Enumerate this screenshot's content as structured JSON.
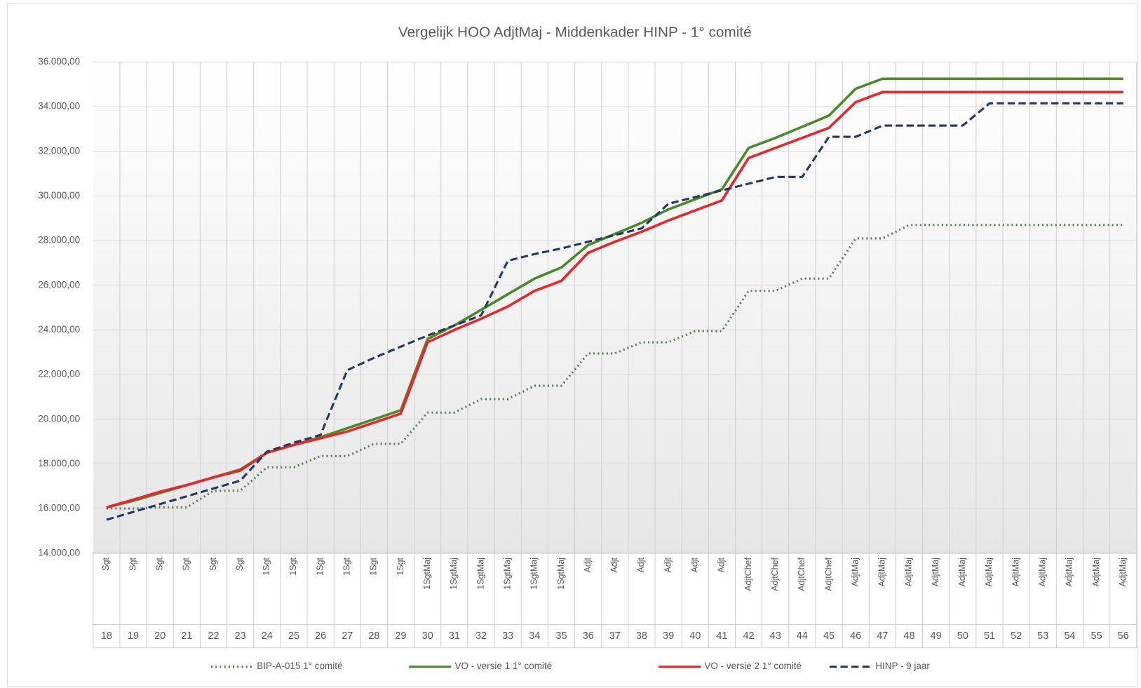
{
  "chart_data": {
    "type": "line",
    "title": "Vergelijk HOO AdjtMaj - Middenkader HINP - 1° comité",
    "categories": [
      "18",
      "19",
      "20",
      "21",
      "22",
      "23",
      "24",
      "25",
      "26",
      "27",
      "28",
      "29",
      "30",
      "31",
      "32",
      "33",
      "34",
      "35",
      "36",
      "37",
      "38",
      "39",
      "40",
      "41",
      "42",
      "43",
      "44",
      "45",
      "46",
      "47",
      "48",
      "49",
      "50",
      "51",
      "52",
      "53",
      "54",
      "55",
      "56"
    ],
    "grades": [
      "Sgt",
      "Sgt",
      "Sgt",
      "Sgt",
      "Sgt",
      "Sgt",
      "1Sgt",
      "1Sgt",
      "1Sgt",
      "1Sgt",
      "1Sgt",
      "1Sgt",
      "1SgtMaj",
      "1SgtMaj",
      "1SgtMaj",
      "1SgtMaj",
      "1SgtMaj",
      "1SgtMaj",
      "Adjt",
      "Adjt",
      "Adjt",
      "Adjt",
      "Adjt",
      "Adjt",
      "AdjtChef",
      "AdjtChef",
      "AdjtChef",
      "AdjtChef",
      "AdjtMaj",
      "AdjtMaj",
      "AdjtMaj",
      "AdjtMaj",
      "AdjtMaj",
      "AdjtMaj",
      "AdjtMaj",
      "AdjtMaj",
      "AdjtMaj",
      "AdjtMaj",
      "AdjtMaj"
    ],
    "series": [
      {
        "name": "BIP-A-015 1° comité",
        "color": "#5b7a5b",
        "dash": "dotted",
        "values": [
          16000,
          16000,
          16050,
          16050,
          16800,
          16800,
          17850,
          17850,
          18350,
          18350,
          18900,
          18900,
          20300,
          20300,
          20900,
          20900,
          21500,
          21500,
          22950,
          22950,
          23450,
          23450,
          23950,
          23950,
          25750,
          25750,
          26300,
          26300,
          28100,
          28100,
          28700,
          28700,
          28700,
          28700,
          28700,
          28700,
          28700,
          28700,
          28700
        ]
      },
      {
        "name": "VO - versie 1 1° comité",
        "color": "#4a8a2a",
        "dash": "solid",
        "values": [
          16050,
          16350,
          16700,
          17050,
          17400,
          17750,
          18500,
          18850,
          19200,
          19600,
          20000,
          20400,
          23600,
          24200,
          24900,
          25600,
          26300,
          26800,
          27800,
          28300,
          28800,
          29400,
          29850,
          30300,
          32150,
          32600,
          33100,
          33600,
          34800,
          35250,
          35250,
          35250,
          35250,
          35250,
          35250,
          35250,
          35250,
          35250,
          35250
        ]
      },
      {
        "name": "VO - versie 2 1° comité",
        "color": "#e8262a",
        "dash": "solid",
        "values": [
          16050,
          16400,
          16750,
          17050,
          17400,
          17700,
          18500,
          18850,
          19150,
          19450,
          19850,
          20250,
          23450,
          24000,
          24500,
          25050,
          25750,
          26200,
          27450,
          27950,
          28400,
          28900,
          29350,
          29800,
          31700,
          32150,
          32600,
          33050,
          34200,
          34650,
          34650,
          34650,
          34650,
          34650,
          34650,
          34650,
          34650,
          34650,
          34650
        ]
      },
      {
        "name": "HINP - 9 jaar",
        "color": "#233a5e",
        "dash": "dashed",
        "values": [
          15500,
          15850,
          16200,
          16550,
          16900,
          17250,
          18550,
          18950,
          19300,
          22200,
          22750,
          23250,
          23750,
          24200,
          24650,
          27100,
          27400,
          27650,
          27950,
          28250,
          28550,
          29650,
          29950,
          30250,
          30550,
          30850,
          30850,
          32650,
          32650,
          33150,
          33150,
          33150,
          33150,
          34150,
          34150,
          34150,
          34150,
          34150,
          34150
        ]
      }
    ],
    "ylim": [
      14000,
      36000
    ],
    "yticks": [
      {
        "value": 14000,
        "label": "14.000,00"
      },
      {
        "value": 16000,
        "label": "16.000,00"
      },
      {
        "value": 18000,
        "label": "18.000,00"
      },
      {
        "value": 20000,
        "label": "20.000,00"
      },
      {
        "value": 22000,
        "label": "22.000,00"
      },
      {
        "value": 24000,
        "label": "24.000,00"
      },
      {
        "value": 26000,
        "label": "26.000,00"
      },
      {
        "value": 28000,
        "label": "28.000,00"
      },
      {
        "value": 30000,
        "label": "30.000,00"
      },
      {
        "value": 32000,
        "label": "32.000,00"
      },
      {
        "value": 34000,
        "label": "34.000,00"
      },
      {
        "value": 36000,
        "label": "36.000,00"
      }
    ],
    "grid": true,
    "legend": "bottom"
  }
}
